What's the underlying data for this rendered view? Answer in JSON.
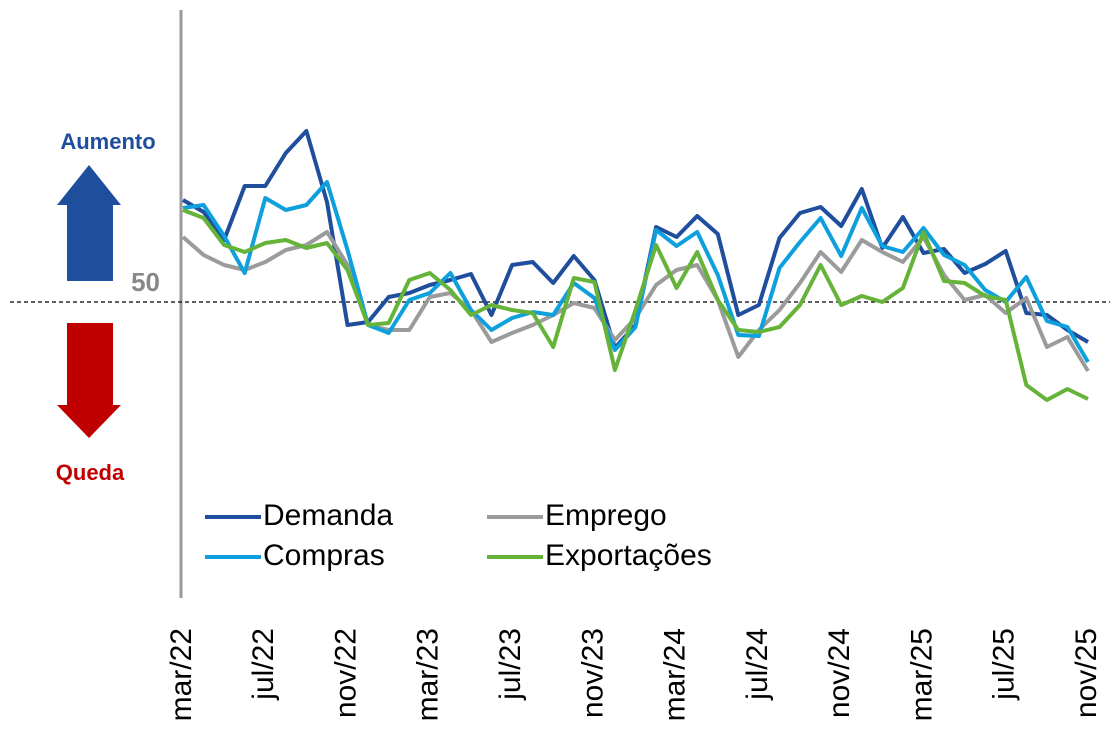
{
  "chart_data": {
    "type": "line",
    "annotations": {
      "up": "Aumento",
      "down": "Queda"
    },
    "categories": [
      "mar/22",
      null,
      null,
      null,
      "jul/22",
      null,
      null,
      null,
      "nov/22",
      null,
      null,
      null,
      "mar/23",
      null,
      null,
      null,
      "jul/23",
      null,
      null,
      null,
      "nov/23",
      null,
      null,
      null,
      "mar/24",
      null,
      null,
      null,
      "jul/24",
      null,
      null,
      null,
      "nov/24",
      null,
      null,
      null,
      "mar/25",
      null,
      null,
      null,
      "jul/25",
      null,
      null,
      null,
      "nov/25"
    ],
    "ylim": [
      20,
      80
    ],
    "yticks": [
      50
    ],
    "grid": true,
    "series": [
      {
        "name": "Demanda",
        "color": "#1f4e9c",
        "values": [
          60.2,
          59.0,
          56.2,
          61.6,
          61.6,
          64.9,
          67.1,
          60.0,
          47.7,
          48.0,
          50.5,
          50.9,
          51.7,
          52.2,
          52.8,
          48.7,
          53.7,
          54.0,
          51.9,
          54.6,
          52.2,
          45.4,
          47.7,
          57.5,
          56.5,
          58.6,
          56.8,
          48.7,
          49.7,
          56.4,
          58.9,
          59.5,
          57.6,
          61.3,
          55.4,
          58.5,
          54.9,
          55.3,
          52.9,
          53.8,
          55.1,
          48.9,
          48.7,
          47.2,
          46.0
        ]
      },
      {
        "name": "Emprego",
        "color": "#9b9b9b",
        "values": [
          56.5,
          54.7,
          53.7,
          53.2,
          54.0,
          55.2,
          55.7,
          57.0,
          53.7,
          47.7,
          47.2,
          47.2,
          50.5,
          50.9,
          49.2,
          46.0,
          46.9,
          47.7,
          48.7,
          49.9,
          49.4,
          46.2,
          48.4,
          51.7,
          53.2,
          53.7,
          50.2,
          44.5,
          47.2,
          49.2,
          51.9,
          55.0,
          53.0,
          56.2,
          55.0,
          54.0,
          56.5,
          52.7,
          50.2,
          50.7,
          48.9,
          50.4,
          45.5,
          46.5,
          43.1
        ]
      },
      {
        "name": "Compras",
        "color": "#0ea0dc",
        "values": [
          59.4,
          59.7,
          56.6,
          52.9,
          60.4,
          59.2,
          59.7,
          62.0,
          55.2,
          47.7,
          46.9,
          50.2,
          50.9,
          52.9,
          49.2,
          47.2,
          48.4,
          49.0,
          48.7,
          51.9,
          50.4,
          45.2,
          47.5,
          57.2,
          55.6,
          57.0,
          52.7,
          46.7,
          46.6,
          53.4,
          56.0,
          58.4,
          54.6,
          59.4,
          55.6,
          55.0,
          57.4,
          54.7,
          53.7,
          51.2,
          50.0,
          52.5,
          48.1,
          47.5,
          44.0
        ]
      },
      {
        "name": "Exportações",
        "color": "#66b33a",
        "values": [
          59.2,
          58.4,
          55.7,
          55.0,
          55.9,
          56.2,
          55.4,
          55.9,
          53.2,
          47.7,
          47.9,
          52.2,
          52.9,
          51.2,
          48.7,
          49.7,
          49.2,
          48.9,
          45.5,
          52.4,
          52.0,
          43.2,
          49.2,
          55.7,
          51.4,
          55.0,
          50.2,
          47.2,
          47.0,
          47.5,
          49.7,
          53.7,
          49.7,
          50.6,
          50.0,
          51.4,
          57.0,
          52.1,
          51.9,
          50.6,
          50.2,
          41.7,
          40.2,
          41.3,
          40.3
        ]
      }
    ]
  }
}
